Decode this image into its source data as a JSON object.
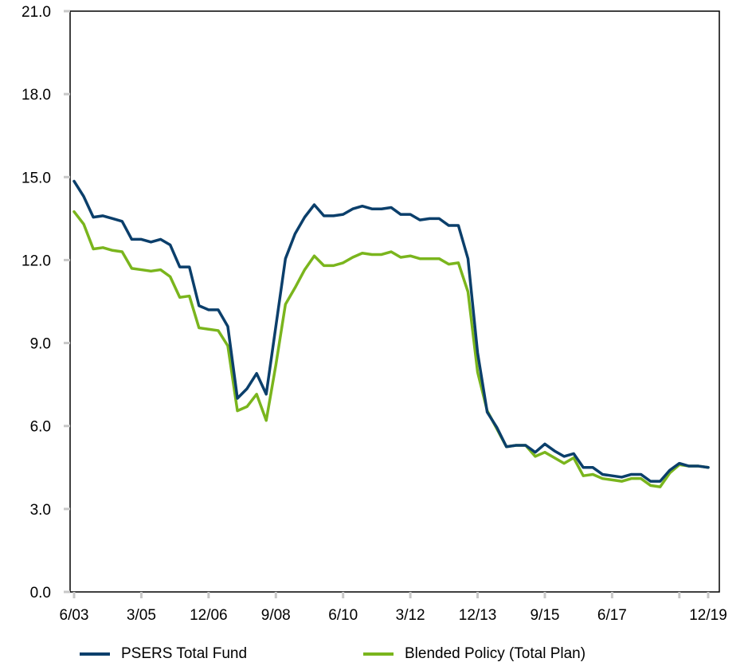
{
  "chart_data": {
    "type": "line",
    "title": "",
    "xlabel": "",
    "ylabel": "",
    "ylim": [
      0,
      21
    ],
    "yticks": [
      "0.0",
      "3.0",
      "6.0",
      "9.0",
      "12.0",
      "15.0",
      "18.0",
      "21.0"
    ],
    "xticks": [
      "6/03",
      "3/05",
      "12/06",
      "9/08",
      "6/10",
      "3/12",
      "12/13",
      "9/15",
      "6/17",
      "12/19"
    ],
    "grid": false,
    "legend_position": "bottom",
    "x_start": "6/03",
    "x_step": "quarter",
    "series": [
      {
        "name": "PSERS Total Fund",
        "color": "#0b3f6b",
        "values": [
          14.85,
          14.3,
          13.55,
          13.6,
          13.5,
          13.4,
          12.75,
          12.75,
          12.65,
          12.75,
          12.55,
          11.75,
          11.75,
          10.35,
          10.2,
          10.2,
          9.6,
          7.0,
          7.35,
          7.9,
          7.15,
          9.6,
          12.05,
          12.95,
          13.55,
          14.0,
          13.6,
          13.6,
          13.65,
          13.85,
          13.95,
          13.85,
          13.85,
          13.9,
          13.65,
          13.65,
          13.45,
          13.5,
          13.5,
          13.25,
          13.25,
          12.05,
          8.65,
          6.5,
          5.95,
          5.25,
          5.3,
          5.3,
          5.05,
          5.35,
          5.1,
          4.9,
          5.0,
          4.5,
          4.5,
          4.25,
          4.2,
          4.15,
          4.25,
          4.25,
          4.0,
          4.0,
          4.4,
          4.65,
          4.55,
          4.55,
          4.5
        ]
      },
      {
        "name": "Blended Policy (Total Plan)",
        "color": "#7ab51d",
        "values": [
          13.75,
          13.3,
          12.4,
          12.45,
          12.35,
          12.3,
          11.7,
          11.65,
          11.6,
          11.65,
          11.4,
          10.65,
          10.7,
          9.55,
          9.5,
          9.45,
          8.9,
          6.55,
          6.7,
          7.15,
          6.2,
          8.2,
          10.4,
          11.0,
          11.65,
          12.15,
          11.8,
          11.8,
          11.9,
          12.1,
          12.25,
          12.2,
          12.2,
          12.3,
          12.1,
          12.15,
          12.05,
          12.05,
          12.05,
          11.85,
          11.9,
          10.85,
          7.95,
          6.55,
          5.9,
          5.25,
          5.3,
          5.3,
          4.9,
          5.05,
          4.85,
          4.65,
          4.85,
          4.2,
          4.25,
          4.1,
          4.05,
          4.0,
          4.1,
          4.1,
          3.85,
          3.8,
          4.3,
          4.6,
          4.55,
          4.55,
          4.5
        ]
      }
    ]
  }
}
